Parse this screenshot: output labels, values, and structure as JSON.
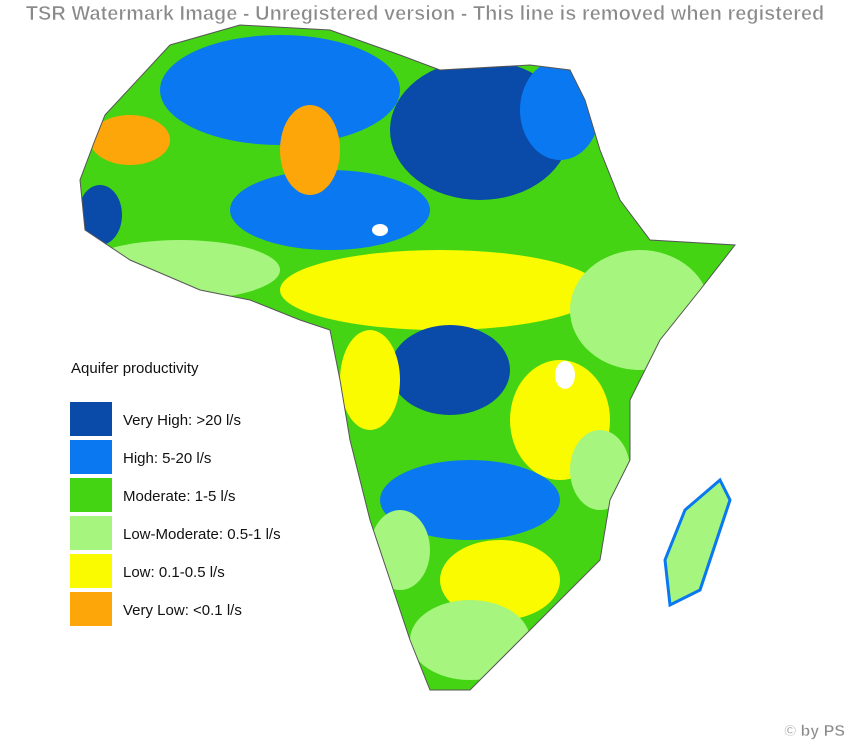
{
  "watermark": "TSR Watermark Image - Unregistered version - This line is removed when registered",
  "legend": {
    "title": "Aquifer productivity",
    "items": [
      {
        "label": "Very High: >20 l/s",
        "color": "#0a4aa8"
      },
      {
        "label": "High: 5-20 l/s",
        "color": "#0a78f0"
      },
      {
        "label": "Moderate: 1-5 l/s",
        "color": "#44d414"
      },
      {
        "label": "Low-Moderate: 0.5-1 l/s",
        "color": "#a6f57e"
      },
      {
        "label": "Low: 0.1-0.5 l/s",
        "color": "#fbfb00"
      },
      {
        "label": "Very Low: <0.1 l/s",
        "color": "#fca60a"
      }
    ]
  },
  "credit": "© by PS"
}
